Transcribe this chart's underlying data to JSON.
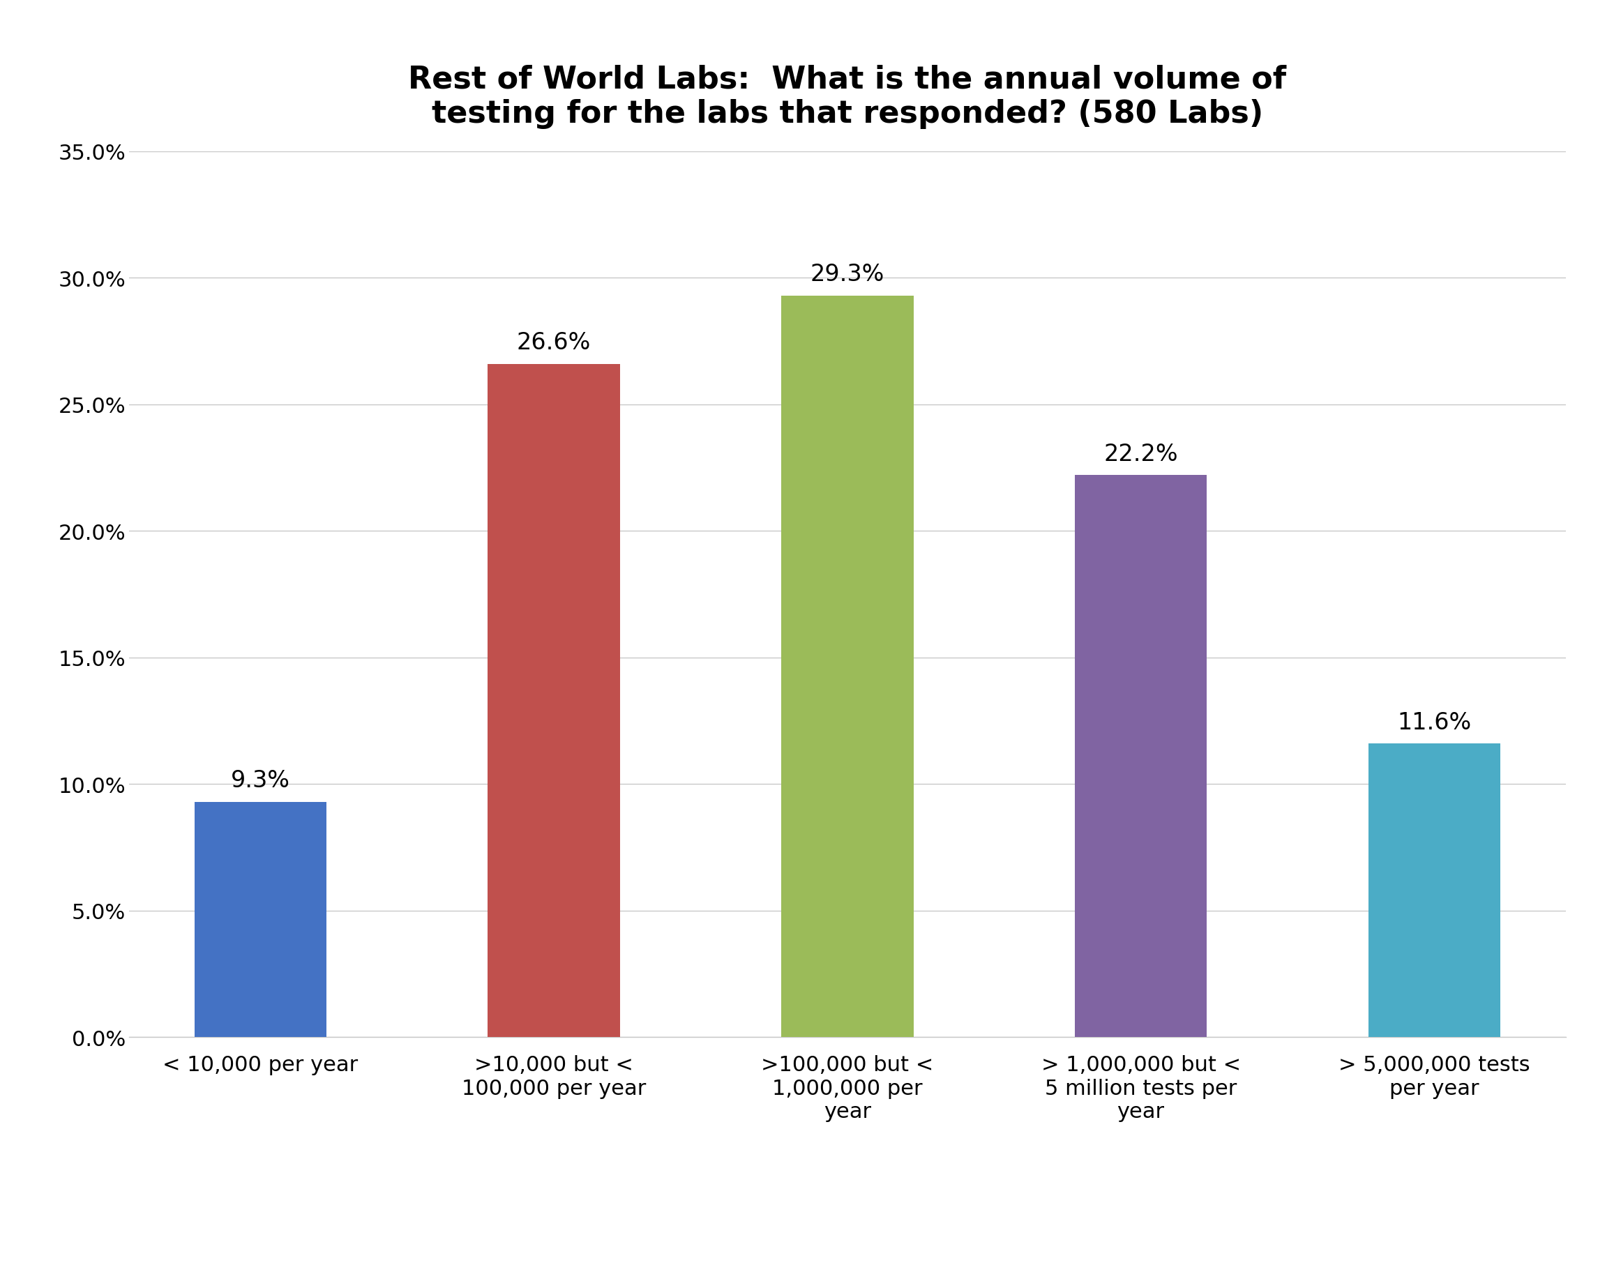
{
  "title": "Rest of World Labs:  What is the annual volume of\ntesting for the labs that responded? (580 Labs)",
  "categories": [
    "< 10,000 per year",
    ">10,000 but <\n100,000 per year",
    ">100,000 but <\n1,000,000 per\nyear",
    "> 1,000,000 but <\n5 million tests per\nyear",
    "> 5,000,000 tests\nper year"
  ],
  "values": [
    0.093,
    0.266,
    0.293,
    0.222,
    0.116
  ],
  "labels": [
    "9.3%",
    "26.6%",
    "29.3%",
    "22.2%",
    "11.6%"
  ],
  "bar_colors": [
    "#4472C4",
    "#C0504D",
    "#9BBB59",
    "#8064A2",
    "#4BACC6"
  ],
  "ylim": [
    0,
    0.35
  ],
  "yticks": [
    0.0,
    0.05,
    0.1,
    0.15,
    0.2,
    0.25,
    0.3,
    0.35
  ],
  "ytick_labels": [
    "0.0%",
    "5.0%",
    "10.0%",
    "15.0%",
    "20.0%",
    "25.0%",
    "30.0%",
    "35.0%"
  ],
  "title_fontsize": 32,
  "label_fontsize": 24,
  "tick_fontsize": 22,
  "xtick_fontsize": 22,
  "background_color": "#FFFFFF",
  "grid_color": "#C8C8C8",
  "bar_width": 0.45
}
